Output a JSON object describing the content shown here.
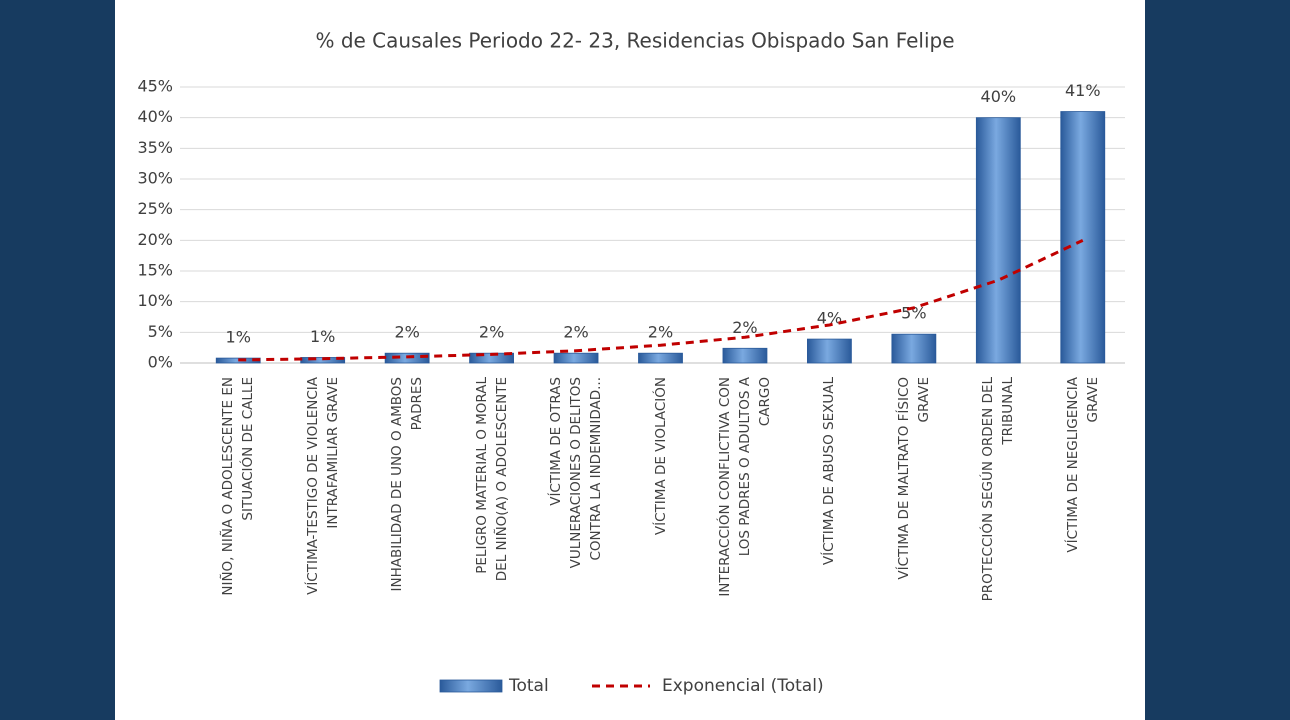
{
  "chart_data": {
    "type": "bar",
    "title": "% de Causales Periodo 22- 23, Residencias Obispado San Felipe",
    "categories": [
      "NIÑO, NIÑA O ADOLESCENTE EN\nSITUACIÓN DE CALLE",
      "VÍCTIMA-TESTIGO DE VIOLENCIA\nINTRAFAMILIAR GRAVE",
      "INHABILIDAD DE UNO O AMBOS\nPADRES",
      "PELIGRO MATERIAL O MORAL\nDEL NIÑO(A) O ADOLESCENTE",
      "VÍCTIMA DE OTRAS\nVULNERACIONES O DELITOS\nCONTRA LA INDEMNIDAD...",
      "VÍCTIMA DE VIOLACIÓN",
      "INTERACCIÓN CONFLICTIVA CON\nLOS PADRES O ADULTOS A\nCARGO",
      "VÍCTIMA DE ABUSO SEXUAL",
      "VÍCTIMA DE MALTRATO FÍSICO\nGRAVE",
      "PROTECCIÓN SEGÚN ORDEN DEL\nTRIBUNAL",
      "VÍCTIMA DE NEGLIGENCIA\nGRAVE"
    ],
    "series": [
      {
        "name": "Total",
        "type": "bar",
        "color": "#3f72b8",
        "values": [
          0.8,
          0.9,
          1.6,
          1.6,
          1.6,
          1.6,
          2.4,
          3.9,
          4.7,
          40,
          41
        ],
        "value_labels": [
          "1%",
          "1%",
          "2%",
          "2%",
          "2%",
          "2%",
          "2%",
          "4%",
          "5%",
          "40%",
          "41%"
        ]
      },
      {
        "name": "Exponencial (Total)",
        "type": "line",
        "style": "dashed",
        "color": "#c00000",
        "values": [
          0.5,
          0.7,
          1.0,
          1.4,
          2.0,
          2.9,
          4.2,
          6.2,
          9.0,
          13.5,
          20
        ]
      }
    ],
    "ylim": [
      0,
      45
    ],
    "yticks": [
      {
        "value": 0,
        "label": "0%"
      },
      {
        "value": 5,
        "label": "5%"
      },
      {
        "value": 10,
        "label": "10%"
      },
      {
        "value": 15,
        "label": "15%"
      },
      {
        "value": 20,
        "label": "20%"
      },
      {
        "value": 25,
        "label": "25%"
      },
      {
        "value": 30,
        "label": "30%"
      },
      {
        "value": 35,
        "label": "35%"
      },
      {
        "value": 40,
        "label": "40%"
      },
      {
        "value": 45,
        "label": "45%"
      }
    ],
    "grid": true,
    "legend": "bottom"
  }
}
